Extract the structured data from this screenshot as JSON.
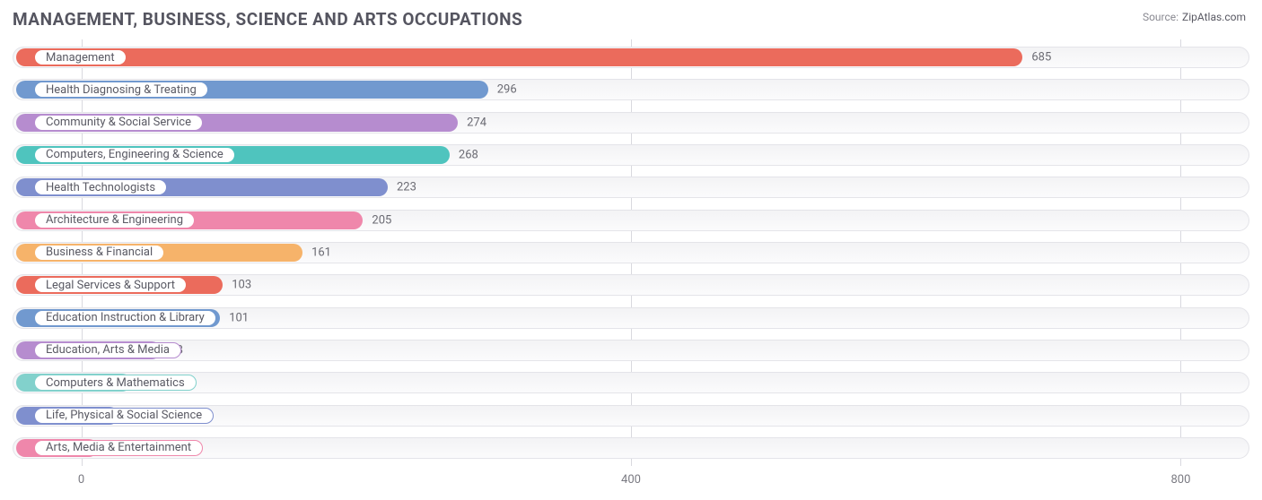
{
  "title": "MANAGEMENT, BUSINESS, SCIENCE AND ARTS OCCUPATIONS",
  "source": {
    "label": "Source:",
    "name": "ZipAtlas.com"
  },
  "chart": {
    "type": "bar-horizontal",
    "x_min": -50,
    "x_max": 850,
    "x_ticks": [
      0,
      400,
      800
    ],
    "grid_color": "#d9d9df",
    "track_bg": "#f4f4f6",
    "bar_radius": 12,
    "value_label_color": "#6a6a72",
    "value_label_fontsize": 13,
    "category_label_fontsize": 13,
    "categories": [
      {
        "label": "Management",
        "value": 685,
        "color": "#eb6b5c"
      },
      {
        "label": "Health Diagnosing & Treating",
        "value": 296,
        "color": "#7199cf"
      },
      {
        "label": "Community & Social Service",
        "value": 274,
        "color": "#b68ccf"
      },
      {
        "label": "Computers, Engineering & Science",
        "value": 268,
        "color": "#4fc4be"
      },
      {
        "label": "Health Technologists",
        "value": 223,
        "color": "#7f8fce"
      },
      {
        "label": "Architecture & Engineering",
        "value": 205,
        "color": "#ef87ab"
      },
      {
        "label": "Business & Financial",
        "value": 161,
        "color": "#f6b36a"
      },
      {
        "label": "Legal Services & Support",
        "value": 103,
        "color": "#eb6b5c"
      },
      {
        "label": "Education Instruction & Library",
        "value": 101,
        "color": "#7199cf"
      },
      {
        "label": "Education, Arts & Media",
        "value": 58,
        "color": "#b68ccf"
      },
      {
        "label": "Computers & Mathematics",
        "value": 36,
        "color": "#82d1cc"
      },
      {
        "label": "Life, Physical & Social Science",
        "value": 27,
        "color": "#7f8fce"
      },
      {
        "label": "Arts, Media & Entertainment",
        "value": 12,
        "color": "#ef87ab"
      }
    ]
  }
}
